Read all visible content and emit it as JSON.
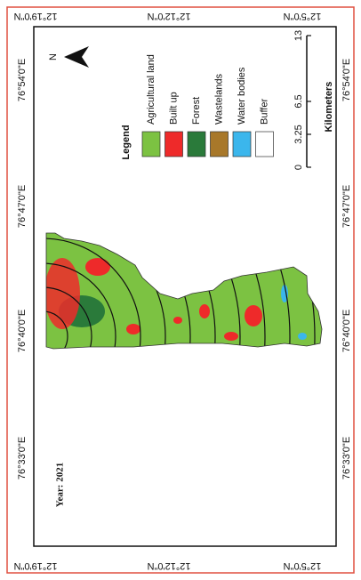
{
  "map": {
    "year": "Year: 2021",
    "north": "N",
    "latitude_labels": [
      "12°19'0\"N",
      "12°12'0\"N",
      "12°5'0\"N"
    ],
    "longitude_labels": [
      "76°54'0\"E",
      "76°47'0\"E",
      "76°40'0\"E",
      "76°33'0\"E"
    ],
    "legend": {
      "title": "Legend",
      "items": [
        {
          "label": "Agricultural land",
          "color": "#7cc242"
        },
        {
          "label": "Built up",
          "color": "#ee2a2a"
        },
        {
          "label": "Forest",
          "color": "#2a7a3a"
        },
        {
          "label": "Wastelands",
          "color": "#a8782a"
        },
        {
          "label": "Water bodies",
          "color": "#3bb6ec"
        },
        {
          "label": "Buffer",
          "color": "#ffffff"
        }
      ]
    },
    "scale": {
      "unit": "Kilometers",
      "ticks": [
        0,
        3.25,
        6.5,
        13
      ]
    }
  }
}
